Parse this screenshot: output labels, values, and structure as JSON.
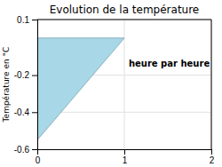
{
  "chart_data": {
    "type": "area",
    "title": "Evolution de la température",
    "y_label": "Température en °C",
    "x": [
      0,
      0,
      1
    ],
    "values": [
      0,
      -0.55,
      0
    ],
    "color": "#a8d8e8",
    "xlim": [
      0,
      2
    ],
    "ylim": [
      -0.6,
      0.1
    ],
    "xticks": [
      0,
      1,
      2
    ],
    "yticks": [
      0.1,
      -0.2,
      -0.4,
      -0.6
    ],
    "grid": true,
    "annotations": [
      {
        "text": "heure par heure",
        "x": 1.05,
        "y": -0.12
      }
    ]
  }
}
